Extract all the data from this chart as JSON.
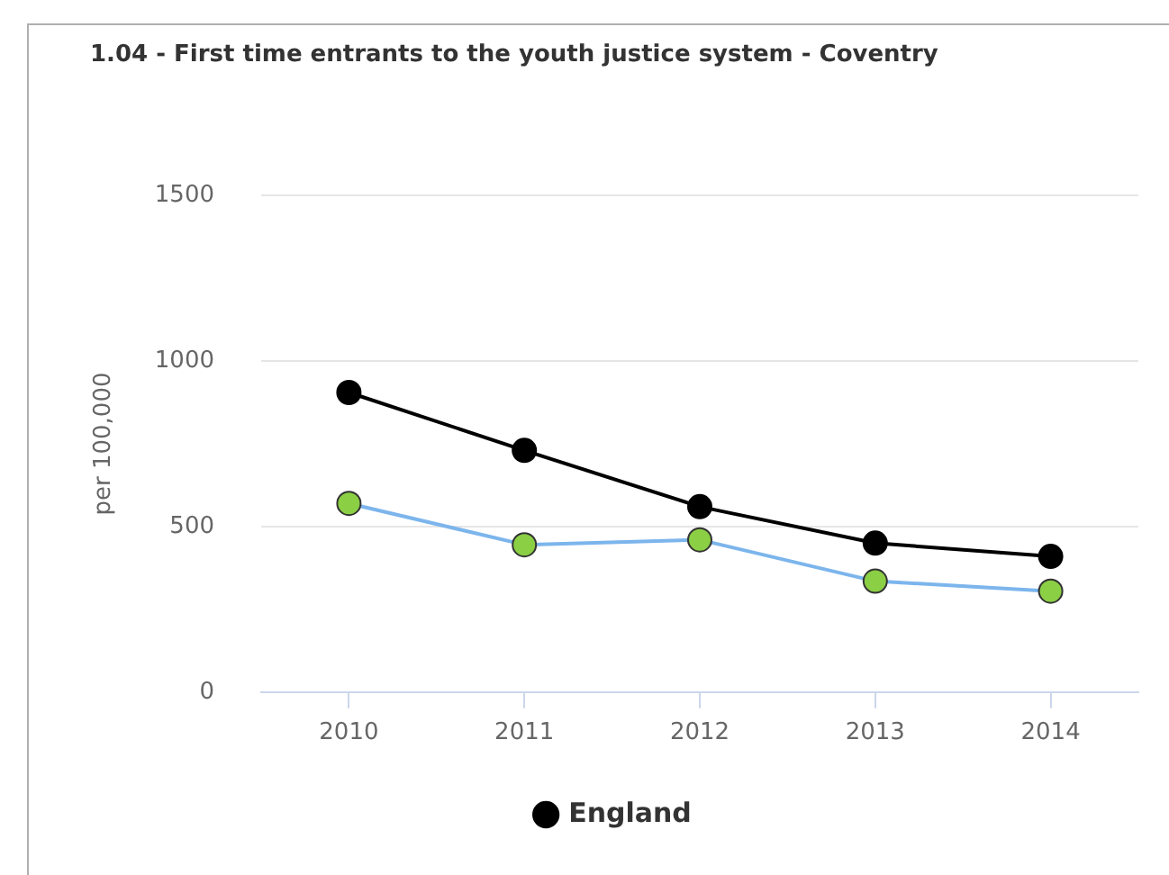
{
  "chart_data": {
    "type": "line",
    "title": "1.04 - First time entrants to the youth justice system - Coventry",
    "ylabel": "per 100,000",
    "categories": [
      "2010",
      "2011",
      "2012",
      "2013",
      "2014"
    ],
    "series": [
      {
        "name": "England",
        "color": "#000000",
        "values": [
          905,
          730,
          560,
          450,
          410
        ]
      },
      {
        "color": "#7cb5ec",
        "colors": [
          "#8bcf45",
          "#8bcf45",
          "#8bcf45",
          "#8bcf45",
          "#8bcf45"
        ],
        "values": [
          570,
          445,
          460,
          335,
          305
        ]
      }
    ],
    "ylim": [
      0,
      1500
    ],
    "yticks": [
      0,
      500,
      1000,
      1500
    ],
    "grid": "y",
    "legend": "bottom",
    "marker": "circle",
    "line_style": "solid"
  }
}
